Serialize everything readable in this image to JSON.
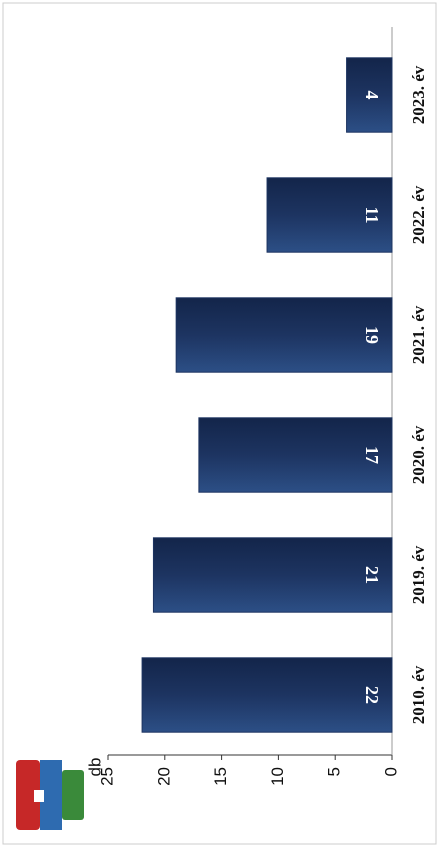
{
  "chart_data": {
    "type": "bar",
    "ylabel": "db",
    "categories": [
      "2010. év",
      "2019. év",
      "2020. év",
      "2021. év",
      "2022. év",
      "2023. év"
    ],
    "values": [
      22,
      21,
      17,
      19,
      11,
      4
    ],
    "color": "#1d3461",
    "ylim": [
      0,
      25
    ],
    "yticks": [
      0,
      5,
      10,
      15,
      20,
      25
    ],
    "data_labels": true
  }
}
